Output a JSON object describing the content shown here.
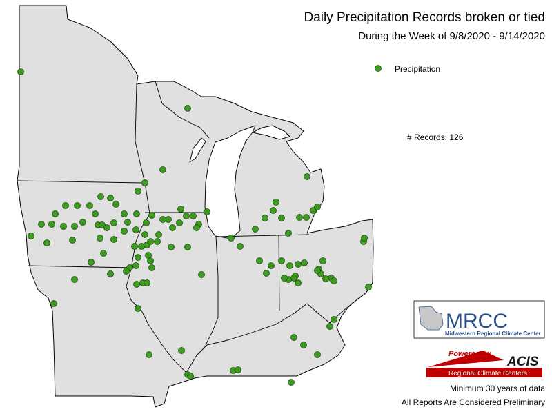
{
  "header": {
    "title": "Daily Precipitation Records broken or tied",
    "subtitle": "During the Week of 9/8/2020 - 9/14/2020"
  },
  "legend": {
    "label": "Precipitation"
  },
  "records": {
    "label": "# Records:",
    "count": 126
  },
  "logos": {
    "mrcc": "MRCC",
    "mrcc_name": "Midwestern Regional Climate Center",
    "powered_by": "Powered by",
    "acis": "ACIS",
    "rcc": "Regional Climate Centers"
  },
  "footer": {
    "note": "Minimum 30 years of data",
    "disclaimer": "All Reports Are Considered Preliminary"
  }
}
